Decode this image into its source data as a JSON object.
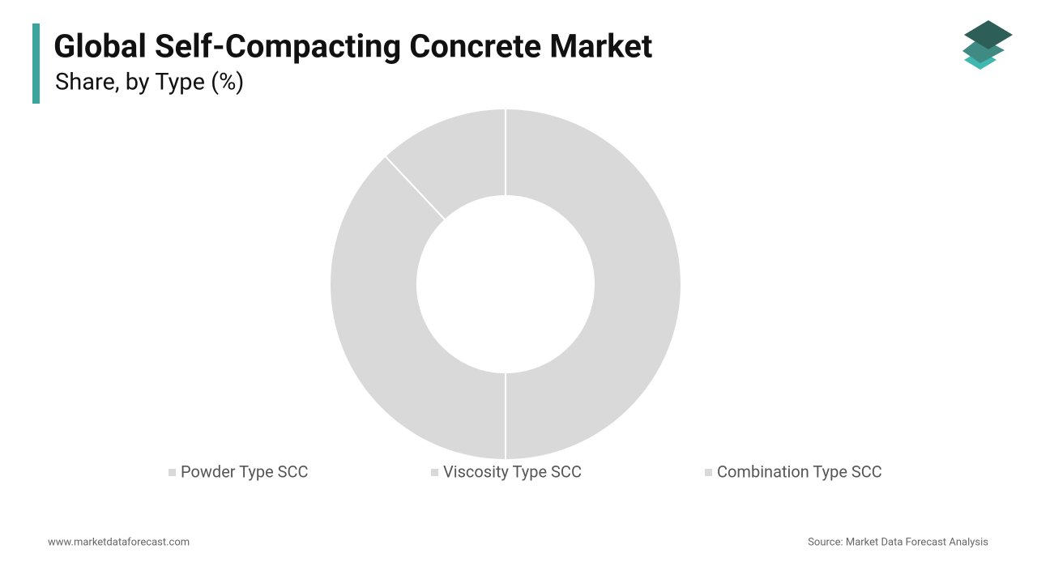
{
  "chart_data": {
    "type": "donut",
    "title": "Global Self-Compacting Concrete Market",
    "subtitle": "Share, by Type (%)",
    "categories": [
      "Powder Type SCC",
      "Viscosity Type SCC",
      "Combination Type SCC"
    ],
    "values": [
      50,
      38,
      12
    ],
    "colors": [
      "#d9d9d9",
      "#d9d9d9",
      "#d9d9d9"
    ],
    "legend": "bottom",
    "website": "www.marketdataforecast.com",
    "source": "Source: Market Data Forecast Analysis"
  }
}
